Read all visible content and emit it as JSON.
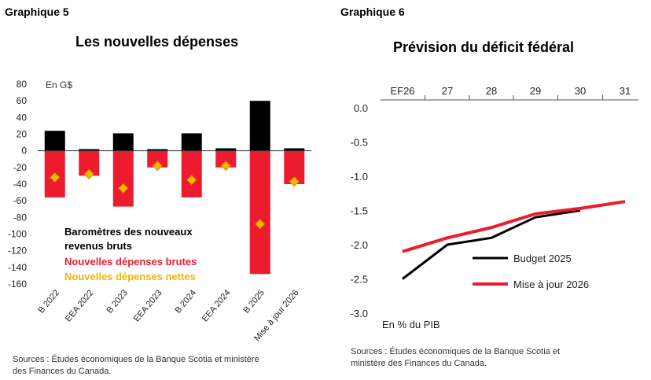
{
  "left": {
    "panel_label": "Graphique 5",
    "source_line1": "Sources : Études économiques de la Banque Scotia et ministère",
    "source_line2": "des Finances du Canada."
  },
  "right": {
    "panel_label": "Graphique 6",
    "source_line1": "Sources : Études économiques de la Banque Scotia et",
    "source_line2": "ministère des Finances du Canada."
  },
  "chart_data": [
    {
      "type": "bar",
      "title": "Les nouvelles dépenses",
      "unit_label": "En G$",
      "ylim": [
        -160,
        80
      ],
      "yticks": [
        80,
        60,
        40,
        20,
        0,
        -20,
        -40,
        -60,
        -80,
        -100,
        -120,
        -140,
        -160
      ],
      "categories": [
        "B 2022",
        "EEA 2022",
        "B 2023",
        "EEA 2023",
        "B 2024",
        "EEA 2024",
        "B 2025",
        "Mise à jour 2026"
      ],
      "series": [
        {
          "name": "Baromètres des nouveaux revenus bruts",
          "legend_line1": "Baromètres des nouveaux",
          "legend_line2": "revenus bruts",
          "color": "#000000",
          "values": [
            24,
            2,
            21,
            2,
            21,
            3,
            60,
            3
          ]
        },
        {
          "name": "Nouvelles dépenses brutes",
          "color": "#ec1c2e",
          "values": [
            -56,
            -30,
            -67,
            -20,
            -56,
            -20,
            -148,
            -40
          ]
        },
        {
          "name": "Nouvelles dépenses nettes",
          "color": "#f5b400",
          "values": [
            -32,
            -28,
            -45,
            -18,
            -35,
            -18,
            -88,
            -37
          ]
        }
      ],
      "legend_position": "bottom-left"
    },
    {
      "type": "line",
      "title": "Prévision du déficit fédéral",
      "xlabel_note": "En % du PIB",
      "x_ticks": [
        "EF26",
        "27",
        "28",
        "29",
        "30",
        "31"
      ],
      "ylim": [
        -3.0,
        0.0
      ],
      "yticks": [
        "0.0",
        "-0.5",
        "-1.0",
        "-1.5",
        "-2.0",
        "-2.5",
        "-3.0"
      ],
      "ytick_values": [
        0.0,
        -0.5,
        -1.0,
        -1.5,
        -2.0,
        -2.5,
        -3.0
      ],
      "series": [
        {
          "name": "Budget 2025",
          "color": "#000000",
          "values": [
            -2.5,
            -2.0,
            -1.9,
            -1.6,
            -1.5,
            null
          ]
        },
        {
          "name": "Mise à jour 2026",
          "color": "#ec1c2e",
          "values": [
            -2.1,
            -1.9,
            -1.75,
            -1.55,
            -1.47,
            -1.37
          ]
        }
      ],
      "legend_position": "bottom-right"
    }
  ]
}
